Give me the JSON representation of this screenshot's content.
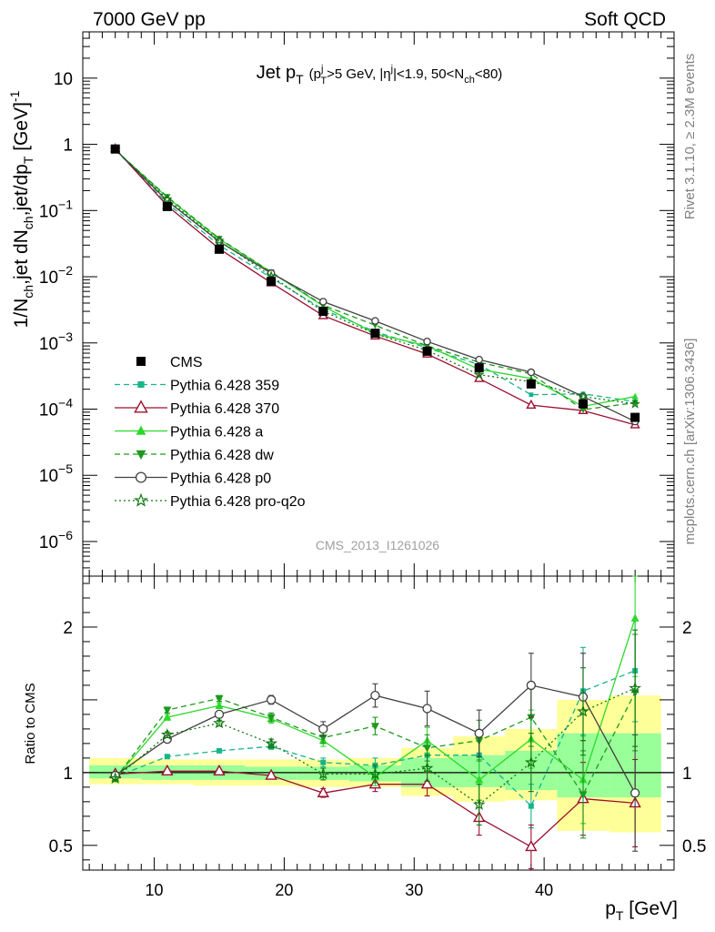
{
  "header": {
    "left": "7000 GeV pp",
    "right": "Soft QCD"
  },
  "side_labels": {
    "rivet": "Rivet 3.1.10, ≥ 2.3M events",
    "mcplots": "mcplots.cern.ch [arXiv:1306.3436]"
  },
  "watermark": "CMS_2013_I1261026",
  "main_title": {
    "main": "Jet p",
    "main_sub": "T",
    "cond_1": "(p",
    "cond_1_sub": "T",
    "cond_1_sup": "j",
    "cond_2": ">5 GeV, |η",
    "cond_2_sup": "j",
    "cond_3": "|<1.9, 50<N",
    "cond_3_sub": "ch",
    "cond_4": "<80)"
  },
  "y_title": {
    "p1": "1/N",
    "p1_sub": "ch",
    "p2": ",jet dN",
    "p2_sub": "ch",
    "p3": ",jet/dp",
    "p3_sub": "T",
    "p4": " [GeV]",
    "p4_sup": "-1"
  },
  "x_title": {
    "main": "p",
    "sub": "T",
    "unit": " [GeV]"
  },
  "ratio_ylabel": "Ratio to CMS",
  "colors": {
    "band_outer": "#ffff99",
    "band_inner": "#99ff99"
  },
  "chart_data": {
    "type": "line",
    "xlim": [
      4.5,
      50
    ],
    "main_ylim": [
      3e-07,
      50
    ],
    "main_log_y": true,
    "ratio_ylim": [
      0.33,
      2.35
    ],
    "x_ticks": [
      10,
      20,
      30,
      40
    ],
    "x_tick_labels": [
      "10",
      "20",
      "30",
      "40"
    ],
    "main_y_ticks": [
      {
        "value": 1e-06,
        "base": "10",
        "exp": "−6"
      },
      {
        "value": 1e-05,
        "base": "10",
        "exp": "−5"
      },
      {
        "value": 0.0001,
        "base": "10",
        "exp": "−4"
      },
      {
        "value": 0.001,
        "base": "10",
        "exp": "−3"
      },
      {
        "value": 0.01,
        "base": "10",
        "exp": "−2"
      },
      {
        "value": 0.1,
        "base": "10",
        "exp": "−1"
      },
      {
        "value": 1,
        "base": "1",
        "exp": ""
      },
      {
        "value": 10,
        "base": "10",
        "exp": ""
      }
    ],
    "ratio_y_ticks": [
      {
        "value": 0.5,
        "label": "0.5"
      },
      {
        "value": 1,
        "label": "1"
      },
      {
        "value": 2,
        "label": "2"
      }
    ],
    "x": [
      7,
      11,
      15,
      19,
      23,
      27,
      31,
      35,
      39,
      43,
      47
    ],
    "bin_edges": [
      5,
      9,
      13,
      17,
      21,
      25,
      29,
      33,
      37,
      41,
      45,
      49
    ],
    "band_outer": [
      [
        0.92,
        1.1
      ],
      [
        0.92,
        1.09
      ],
      [
        0.91,
        1.09
      ],
      [
        0.91,
        1.09
      ],
      [
        0.9,
        1.09
      ],
      [
        0.9,
        1.1
      ],
      [
        0.84,
        1.17
      ],
      [
        0.8,
        1.25
      ],
      [
        0.81,
        1.3
      ],
      [
        0.6,
        1.5
      ],
      [
        0.59,
        1.53
      ]
    ],
    "band_inner": [
      [
        0.96,
        1.05
      ],
      [
        0.95,
        1.05
      ],
      [
        0.95,
        1.05
      ],
      [
        0.95,
        1.04
      ],
      [
        0.95,
        1.04
      ],
      [
        0.94,
        1.05
      ],
      [
        0.9,
        1.1
      ],
      [
        0.9,
        1.12
      ],
      [
        0.88,
        1.15
      ],
      [
        0.83,
        1.27
      ],
      [
        0.83,
        1.27
      ]
    ],
    "legend_position": "left-middle",
    "data": {
      "name": "CMS",
      "values": [
        0.85,
        0.115,
        0.026,
        0.0085,
        0.003,
        0.0014,
        0.00075,
        0.00042,
        0.00024,
        0.00012,
        7.5e-05
      ]
    },
    "series": [
      {
        "name": "Pythia 6.428 359",
        "color": "#18b48a",
        "dash": "6,4",
        "marker": "square",
        "values": [
          0.83,
          0.128,
          0.03,
          0.0096,
          0.0032,
          0.00148,
          0.00084,
          0.00047,
          0.000165,
          0.00017,
          0.00013
        ],
        "ratio": [
          0.97,
          1.11,
          1.15,
          1.18,
          1.07,
          1.05,
          1.12,
          1.12,
          0.77,
          1.56,
          1.7
        ],
        "ratio_err": [
          0.01,
          0.01,
          0.01,
          0.02,
          0.03,
          0.05,
          0.08,
          0.12,
          0.15,
          0.3,
          0.35
        ]
      },
      {
        "name": "Pythia 6.428 370",
        "color": "#9b1030",
        "dash": "",
        "marker": "open-triangle",
        "values": [
          0.86,
          0.118,
          0.0265,
          0.0081,
          0.00258,
          0.00127,
          0.00068,
          0.00029,
          0.000115,
          9.5e-05,
          5.8e-05
        ],
        "ratio": [
          0.99,
          1.01,
          1.01,
          0.98,
          0.86,
          0.92,
          0.92,
          0.69,
          0.49,
          0.82,
          0.79
        ],
        "ratio_err": [
          0.01,
          0.01,
          0.01,
          0.02,
          0.03,
          0.05,
          0.08,
          0.12,
          0.15,
          0.25,
          0.3
        ]
      },
      {
        "name": "Pythia 6.428 a",
        "color": "#2bd92b",
        "dash": "",
        "marker": "triangle",
        "values": [
          0.82,
          0.158,
          0.037,
          0.0117,
          0.0036,
          0.00138,
          0.0009,
          0.0004,
          0.00029,
          0.00011,
          0.000155
        ],
        "ratio": [
          0.96,
          1.38,
          1.46,
          1.37,
          1.22,
          0.97,
          1.22,
          0.95,
          1.23,
          0.95,
          2.06
        ],
        "ratio_err": [
          0.01,
          0.02,
          0.02,
          0.03,
          0.04,
          0.06,
          0.09,
          0.14,
          0.2,
          0.3,
          0.4
        ]
      },
      {
        "name": "Pythia 6.428 dw",
        "color": "#1d9a1d",
        "dash": "6,4",
        "marker": "down-triangle",
        "values": [
          0.82,
          0.162,
          0.038,
          0.0118,
          0.0037,
          0.00185,
          0.0009,
          0.00051,
          0.00034,
          9.8e-05,
          0.000125
        ],
        "ratio": [
          0.96,
          1.43,
          1.51,
          1.38,
          1.24,
          1.32,
          1.17,
          1.22,
          1.38,
          0.85,
          1.55
        ],
        "ratio_err": [
          0.01,
          0.02,
          0.02,
          0.03,
          0.04,
          0.06,
          0.09,
          0.14,
          0.2,
          0.3,
          0.4
        ]
      },
      {
        "name": "Pythia 6.428 p0",
        "color": "#404040",
        "dash": "",
        "marker": "open-circle",
        "values": [
          0.84,
          0.14,
          0.034,
          0.0113,
          0.0042,
          0.00215,
          0.00105,
          0.00056,
          0.00036,
          0.000155,
          6.5e-05
        ],
        "ratio": [
          0.98,
          1.23,
          1.4,
          1.5,
          1.3,
          1.53,
          1.44,
          1.27,
          1.6,
          1.52,
          0.86
        ],
        "ratio_err": [
          0.01,
          0.02,
          0.02,
          0.03,
          0.05,
          0.08,
          0.12,
          0.16,
          0.22,
          0.3,
          0.4
        ]
      },
      {
        "name": "Pythia 6.428 pro-q2o",
        "color": "#137813",
        "dash": "2,3",
        "marker": "open-star",
        "values": [
          0.83,
          0.148,
          0.035,
          0.0102,
          0.003,
          0.00137,
          0.00077,
          0.00033,
          0.00026,
          0.000155,
          0.00012
        ],
        "ratio": [
          0.96,
          1.26,
          1.34,
          1.2,
          0.99,
          0.99,
          1.03,
          0.78,
          1.07,
          1.42,
          1.58
        ],
        "ratio_err": [
          0.01,
          0.02,
          0.02,
          0.03,
          0.04,
          0.06,
          0.09,
          0.14,
          0.2,
          0.3,
          0.4
        ]
      }
    ]
  }
}
